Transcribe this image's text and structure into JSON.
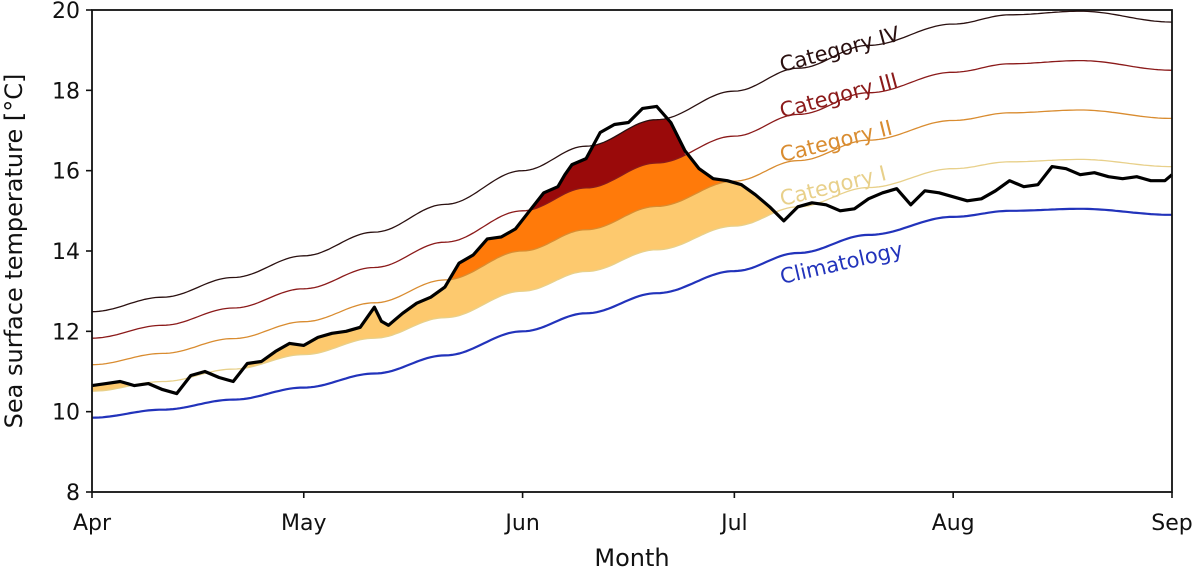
{
  "chart_data": {
    "type": "line",
    "title": "",
    "xlabel": "Month",
    "ylabel": "Sea surface temperature [°C]",
    "ylim": [
      8,
      20
    ],
    "xlim_days": [
      0,
      153
    ],
    "yticks": [
      8,
      10,
      12,
      14,
      16,
      18,
      20
    ],
    "xticks": [
      {
        "day": 0,
        "label": "Apr"
      },
      {
        "day": 30,
        "label": "May"
      },
      {
        "day": 61,
        "label": "Jun"
      },
      {
        "day": 91,
        "label": "Jul"
      },
      {
        "day": 122,
        "label": "Aug"
      },
      {
        "day": 153,
        "label": "Sep"
      }
    ],
    "grid": false,
    "x_days": [
      0,
      10,
      20,
      30,
      40,
      50,
      61,
      70,
      80,
      91,
      100,
      110,
      122,
      130,
      140,
      153
    ],
    "climatology": [
      9.85,
      10.05,
      10.3,
      10.6,
      10.95,
      11.4,
      12.0,
      12.45,
      12.95,
      13.5,
      13.95,
      14.4,
      14.85,
      15.0,
      15.05,
      14.9
    ],
    "threshold_delta": [
      0.66,
      0.7,
      0.76,
      0.82,
      0.88,
      0.94,
      1.0,
      1.04,
      1.08,
      1.12,
      1.15,
      1.18,
      1.2,
      1.22,
      1.23,
      1.2
    ],
    "series": [
      {
        "name": "Climatology",
        "color": "#2233bb"
      },
      {
        "name": "Category I",
        "color": "#e8d08a",
        "multiplier": 1
      },
      {
        "name": "Category II",
        "color": "#d98c30",
        "multiplier": 2
      },
      {
        "name": "Category III",
        "color": "#8b1a1a",
        "multiplier": 3
      },
      {
        "name": "Category IV",
        "color": "#2a1010",
        "multiplier": 4
      }
    ],
    "fill_colors": {
      "cat1": "#fdc96e",
      "cat2": "#ff7a0a",
      "cat3": "#9a0a0a"
    },
    "sst": {
      "name": "Sea surface temperature",
      "color": "#000000",
      "x": [
        0,
        2,
        4,
        6,
        8,
        10,
        12,
        14,
        16,
        18,
        20,
        22,
        24,
        26,
        28,
        30,
        32,
        34,
        36,
        38,
        40,
        41,
        42,
        43,
        44,
        46,
        48,
        50,
        52,
        54,
        56,
        58,
        60,
        62,
        64,
        66,
        67,
        68,
        70,
        72,
        74,
        76,
        78,
        80,
        82,
        84,
        86,
        88,
        90,
        92,
        94,
        96,
        98,
        100,
        102,
        104,
        106,
        108,
        110,
        112,
        114,
        116,
        118,
        120,
        122,
        124,
        126,
        128,
        130,
        132,
        134,
        136,
        138,
        140,
        142,
        144,
        146,
        148,
        150,
        152,
        153
      ],
      "y": [
        10.65,
        10.7,
        10.75,
        10.65,
        10.7,
        10.55,
        10.45,
        10.9,
        11.0,
        10.85,
        10.75,
        11.2,
        11.25,
        11.5,
        11.7,
        11.65,
        11.85,
        11.95,
        12.0,
        12.1,
        12.6,
        12.25,
        12.15,
        12.3,
        12.45,
        12.7,
        12.85,
        13.1,
        13.7,
        13.9,
        14.3,
        14.35,
        14.55,
        15.0,
        15.45,
        15.6,
        15.9,
        16.15,
        16.3,
        16.95,
        17.15,
        17.2,
        17.55,
        17.6,
        17.2,
        16.5,
        16.05,
        15.8,
        15.75,
        15.65,
        15.4,
        15.1,
        14.75,
        15.1,
        15.2,
        15.15,
        15.0,
        15.05,
        15.3,
        15.45,
        15.55,
        15.15,
        15.5,
        15.45,
        15.35,
        15.25,
        15.3,
        15.5,
        15.75,
        15.6,
        15.65,
        16.1,
        16.05,
        15.9,
        15.95,
        15.85,
        15.8,
        15.85,
        15.75,
        15.75,
        15.9
      ]
    },
    "annotations": [
      {
        "text": "Category IV",
        "series": "Category IV"
      },
      {
        "text": "Category III",
        "series": "Category III"
      },
      {
        "text": "Category II",
        "series": "Category II"
      },
      {
        "text": "Category I",
        "series": "Category I"
      },
      {
        "text": "Climatology",
        "series": "Climatology"
      }
    ]
  }
}
